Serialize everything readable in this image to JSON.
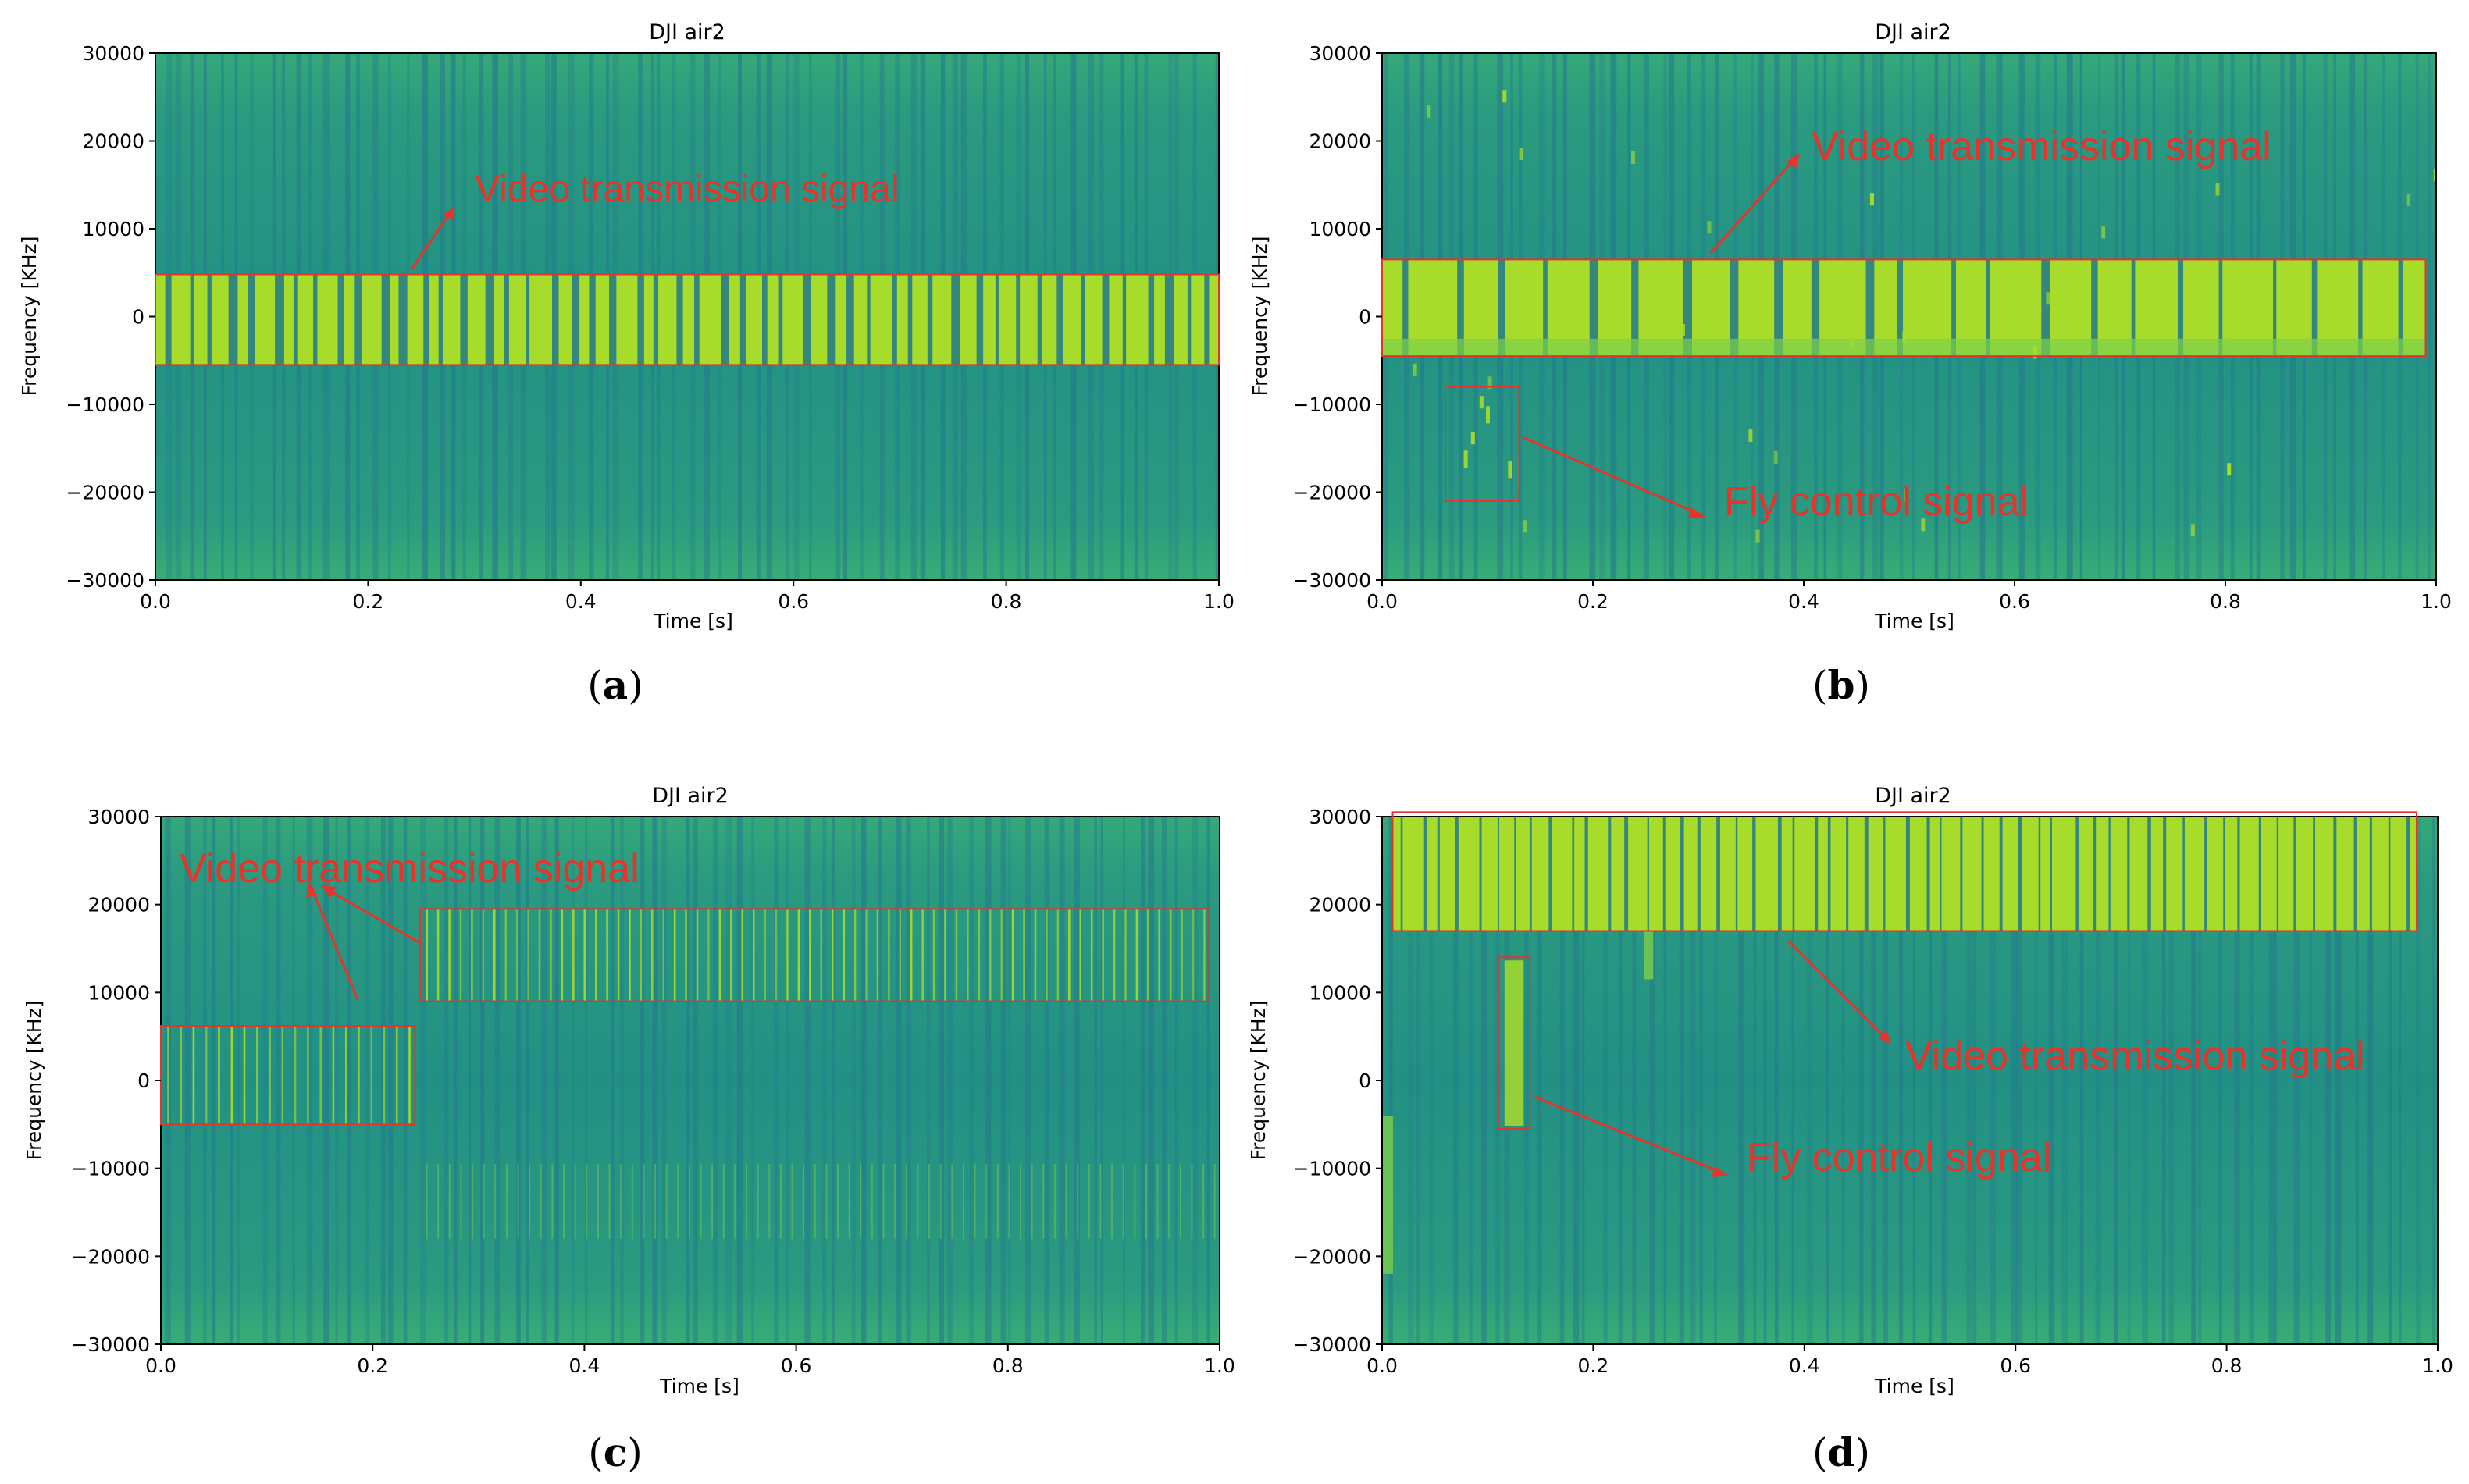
{
  "colors": {
    "background": "#2a9a80",
    "band_light": "#39ae74",
    "signal": "#a8dc2a",
    "signal_mid": "#7cd04a",
    "column_dark": "#21788c",
    "annotation": "#e8322a"
  },
  "chart_data": [
    {
      "id": "a",
      "type": "heatmap",
      "title": "DJI air2",
      "xlabel": "Time [s]",
      "ylabel": "Frequency [KHz]",
      "xlim": [
        0,
        1.0
      ],
      "ylim": [
        -30000,
        30000
      ],
      "xticks": [
        "0.0",
        "0.2",
        "0.4",
        "0.6",
        "0.8",
        "1.0"
      ],
      "yticks": [
        "30000",
        "20000",
        "10000",
        "0",
        "−10000",
        "−20000",
        "−30000"
      ],
      "caption_letter": "a",
      "caption_open": "(",
      "caption_close": ")",
      "signals": [
        {
          "label": "Video transmission signal",
          "t_start": 0.0,
          "t_end": 1.0,
          "f_low": -5500,
          "f_high": 4800,
          "pulse_count": 50
        }
      ],
      "annotations": [
        {
          "text": "Video transmission signal",
          "text_t": 0.3,
          "text_f": 14000
        }
      ]
    },
    {
      "id": "b",
      "type": "heatmap",
      "title": "DJI air2",
      "xlabel": "Time [s]",
      "ylabel": "Frequency [KHz]",
      "xlim": [
        0,
        1.0
      ],
      "ylim": [
        -30000,
        30000
      ],
      "xticks": [
        "0.0",
        "0.2",
        "0.4",
        "0.6",
        "0.8",
        "1.0"
      ],
      "yticks": [
        "30000",
        "20000",
        "10000",
        "0",
        "−10000",
        "−20000",
        "−30000"
      ],
      "caption_letter": "b",
      "caption_open": "(",
      "caption_close": ")",
      "signals": [
        {
          "label": "Video transmission signal",
          "t_start": 0.0,
          "t_end": 0.99,
          "f_low": -4500,
          "f_high": 6500,
          "pulse_count": 23
        },
        {
          "label": "Fly control signal",
          "t_start": 0.06,
          "t_end": 0.13,
          "f_low": -21000,
          "f_high": -8000,
          "pulse_count": 0
        }
      ],
      "annotations": [
        {
          "text": "Video transmission signal",
          "text_t": 0.4,
          "text_f": 19500
        },
        {
          "text": "Fly control signal",
          "text_t": 0.32,
          "text_f": -22000
        }
      ]
    },
    {
      "id": "c",
      "type": "heatmap",
      "title": "DJI air2",
      "xlabel": "Time [s]",
      "ylabel": "Frequency [KHz]",
      "xlim": [
        0,
        1.0
      ],
      "ylim": [
        -30000,
        30000
      ],
      "xticks": [
        "0.0",
        "0.2",
        "0.4",
        "0.6",
        "0.8",
        "1.0"
      ],
      "yticks": [
        "30000",
        "20000",
        "10000",
        "0",
        "−10000",
        "−20000",
        "−30000"
      ],
      "caption_letter": "c",
      "caption_open": "(",
      "caption_close": ")",
      "signals": [
        {
          "label": "Video transmission signal",
          "t_start": 0.0,
          "t_end": 0.24,
          "f_low": -5000,
          "f_high": 6200,
          "pulse_count": 20
        },
        {
          "label": "Video transmission signal",
          "t_start": 0.245,
          "t_end": 0.99,
          "f_low": 9000,
          "f_high": 19500,
          "pulse_count": 70
        }
      ],
      "annotations": [
        {
          "text": "Video transmission signal",
          "text_t": 0.02,
          "text_f": 23000
        }
      ]
    },
    {
      "id": "d",
      "type": "heatmap",
      "title": "DJI air2",
      "xlabel": "Time [s]",
      "ylabel": "Frequency [KHz]",
      "xlim": [
        0,
        1.0
      ],
      "ylim": [
        -30000,
        30000
      ],
      "xticks": [
        "0.0",
        "0.2",
        "0.4",
        "0.6",
        "0.8",
        "1.0"
      ],
      "yticks": [
        "30000",
        "20000",
        "10000",
        "0",
        "−10000",
        "−20000",
        "−30000"
      ],
      "caption_letter": "d",
      "caption_open": "(",
      "caption_close": ")",
      "signals": [
        {
          "label": "Video transmission signal",
          "t_start": 0.01,
          "t_end": 0.98,
          "f_low": 17000,
          "f_high": 30500,
          "pulse_count": 55
        },
        {
          "label": "Fly control signal",
          "t_start": 0.11,
          "t_end": 0.14,
          "f_low": -5500,
          "f_high": 14000,
          "pulse_count": 0
        }
      ],
      "annotations": [
        {
          "text": "Video transmission signal",
          "text_t": 0.49,
          "text_f": 1500
        },
        {
          "text": "Fly control signal",
          "text_t": 0.34,
          "text_f": -10500
        }
      ]
    }
  ]
}
